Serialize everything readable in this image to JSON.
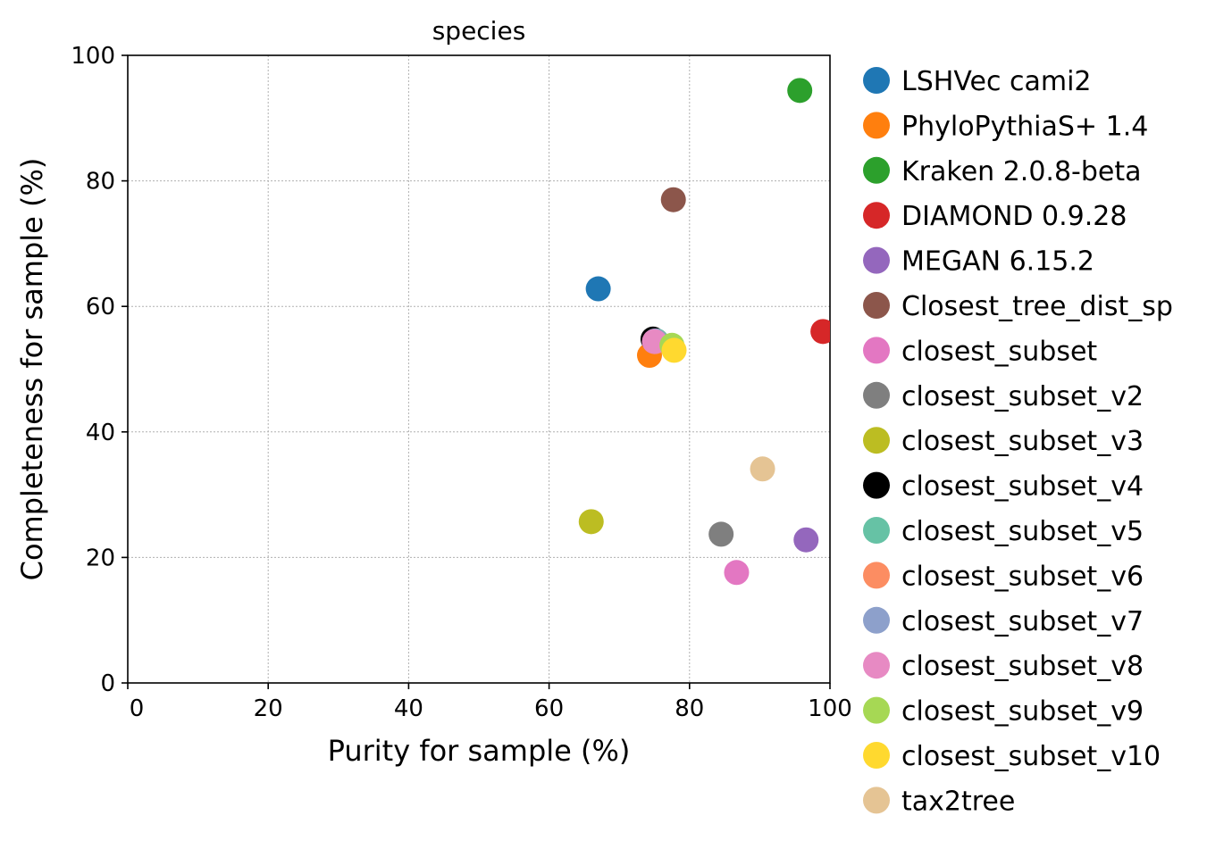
{
  "chart_data": {
    "type": "scatter",
    "title": "species",
    "xlabel": "Purity for sample (%)",
    "ylabel": "Completeness for sample (%)",
    "xlim": [
      0,
      100
    ],
    "ylim": [
      0,
      100
    ],
    "xticks": [
      0,
      20,
      40,
      60,
      80,
      100
    ],
    "yticks": [
      0,
      20,
      40,
      60,
      80,
      100
    ],
    "grid": true,
    "legend_position": "outside-right",
    "series": [
      {
        "name": "LSHVec cami2",
        "color": "#1f77b4",
        "x": 67.0,
        "y": 62.8
      },
      {
        "name": "PhyloPythiaS+ 1.4",
        "color": "#ff7f0e",
        "x": 74.3,
        "y": 52.2
      },
      {
        "name": "Kraken 2.0.8-beta",
        "color": "#2ca02c",
        "x": 95.7,
        "y": 94.4
      },
      {
        "name": "DIAMOND 0.9.28",
        "color": "#d62728",
        "x": 99.0,
        "y": 56.0
      },
      {
        "name": "MEGAN 6.15.2",
        "color": "#9467bd",
        "x": 96.6,
        "y": 22.8
      },
      {
        "name": "Closest_tree_dist_sp",
        "color": "#8c564b",
        "x": 77.7,
        "y": 77.0
      },
      {
        "name": "closest_subset",
        "color": "#e377c2",
        "x": 86.7,
        "y": 17.6
      },
      {
        "name": "closest_subset_v2",
        "color": "#7f7f7f",
        "x": 84.5,
        "y": 23.7
      },
      {
        "name": "closest_subset_v3",
        "color": "#bcbd22",
        "x": 66.0,
        "y": 25.7
      },
      {
        "name": "closest_subset_v4",
        "color": "#000000",
        "x": 74.8,
        "y": 54.8
      },
      {
        "name": "closest_subset_v5",
        "color": "#66c2a5",
        "x": 75.3,
        "y": 54.5
      },
      {
        "name": "closest_subset_v6",
        "color": "#fc8d62",
        "x": 75.2,
        "y": 54.4
      },
      {
        "name": "closest_subset_v7",
        "color": "#8da0cb",
        "x": 75.1,
        "y": 54.5
      },
      {
        "name": "closest_subset_v8",
        "color": "#e78ac3",
        "x": 75.0,
        "y": 54.4
      },
      {
        "name": "closest_subset_v9",
        "color": "#a6d854",
        "x": 77.5,
        "y": 53.8
      },
      {
        "name": "closest_subset_v10",
        "color": "#ffd92f",
        "x": 77.8,
        "y": 53.0
      },
      {
        "name": "tax2tree",
        "color": "#e5c494",
        "x": 90.4,
        "y": 34.1
      }
    ]
  }
}
